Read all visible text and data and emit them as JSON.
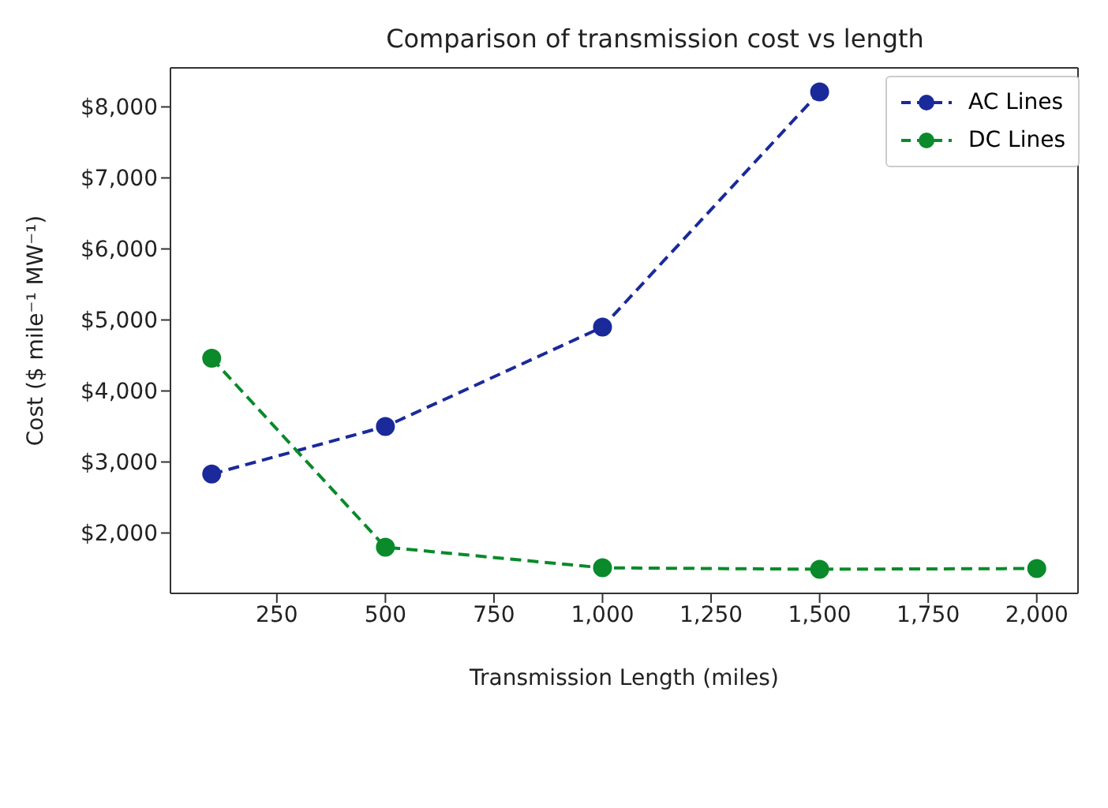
{
  "chart_data": {
    "type": "line",
    "title": "Comparison of transmission cost vs length",
    "xlabel": "Transmission Length (miles)",
    "ylabel": "Cost ($ mile⁻¹ MW⁻¹)",
    "x": [
      100,
      500,
      1000,
      1500,
      2000
    ],
    "series": [
      {
        "name": "AC Lines",
        "color": "#1a2a9a",
        "values": [
          2830,
          3500,
          4900,
          8210,
          null
        ]
      },
      {
        "name": "DC Lines",
        "color": "#0a8a2a",
        "values": [
          4460,
          1800,
          1510,
          1490,
          1500
        ]
      }
    ],
    "xlim": [
      5,
      2095
    ],
    "xticks": [
      {
        "value": 250,
        "label": "250"
      },
      {
        "value": 500,
        "label": "500"
      },
      {
        "value": 750,
        "label": "750"
      },
      {
        "value": 1000,
        "label": "1,000"
      },
      {
        "value": 1250,
        "label": "1,250"
      },
      {
        "value": 1500,
        "label": "1,500"
      },
      {
        "value": 1750,
        "label": "1,750"
      },
      {
        "value": 2000,
        "label": "2,000"
      }
    ],
    "ylim": [
      1150,
      8550
    ],
    "yticks": [
      {
        "value": 2000,
        "label": "$2,000"
      },
      {
        "value": 3000,
        "label": "$3,000"
      },
      {
        "value": 4000,
        "label": "$4,000"
      },
      {
        "value": 5000,
        "label": "$5,000"
      },
      {
        "value": 6000,
        "label": "$6,000"
      },
      {
        "value": 7000,
        "label": "$7,000"
      },
      {
        "value": 8000,
        "label": "$8,000"
      }
    ],
    "grid": false,
    "legend": "top right",
    "marker": "circle",
    "line_style": "dashed"
  }
}
